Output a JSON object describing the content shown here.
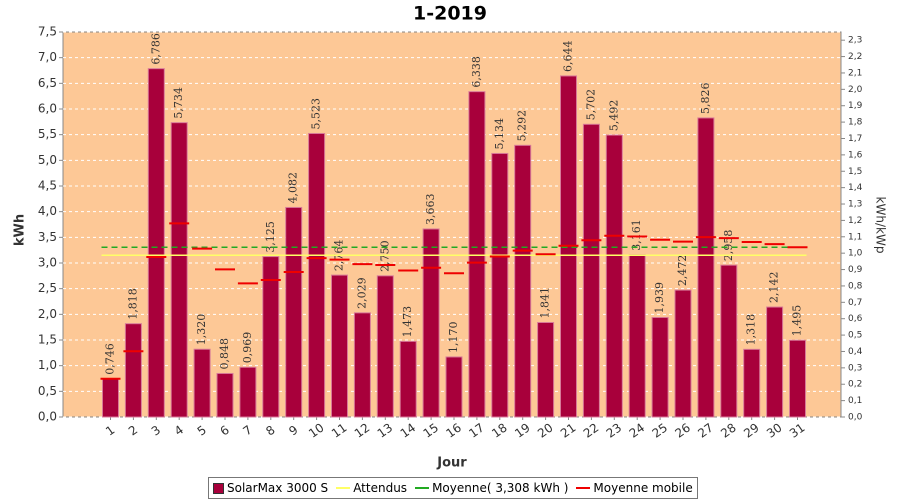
{
  "chart_data": {
    "type": "bar",
    "title": "1-2019",
    "y_label": "kWh",
    "y2_label": "kWh/kWp",
    "x_label": "Jour",
    "categories": [
      "1",
      "2",
      "3",
      "4",
      "5",
      "6",
      "7",
      "8",
      "9",
      "10",
      "11",
      "12",
      "13",
      "14",
      "15",
      "16",
      "17",
      "18",
      "19",
      "20",
      "21",
      "22",
      "23",
      "24",
      "25",
      "26",
      "27",
      "28",
      "29",
      "30",
      "31"
    ],
    "series": [
      {
        "name": "SolarMax 3000 S",
        "type": "bar",
        "color": "#a8003b",
        "values": [
          0.746,
          1.818,
          6.786,
          5.734,
          1.32,
          0.848,
          0.969,
          3.125,
          4.082,
          5.523,
          2.764,
          2.029,
          2.75,
          1.473,
          3.663,
          1.17,
          6.338,
          5.134,
          5.292,
          1.841,
          6.644,
          5.702,
          5.492,
          3.161,
          1.939,
          2.472,
          5.826,
          2.958,
          1.318,
          2.142,
          1.495
        ],
        "value_labels": [
          "0,746",
          "1,818",
          "6,786",
          "5,734",
          "1,320",
          "0,848",
          "0,969",
          "3,125",
          "4,082",
          "5,523",
          "2,764",
          "2,029",
          "2,750",
          "1,473",
          "3,663",
          "1,170",
          "6,338",
          "5,134",
          "5,292",
          "1,841",
          "6,644",
          "5,702",
          "5,492",
          "3,161",
          "1,939",
          "2,472",
          "5,826",
          "2,958",
          "1,318",
          "2,142",
          "1,495"
        ]
      },
      {
        "name": "Attendus",
        "type": "hline",
        "color": "#ffff66",
        "value": 3.15
      },
      {
        "name": "Moyenne( 3,308 kWh )",
        "type": "hline",
        "color": "#22aa22",
        "dashed": true,
        "value": 3.308
      },
      {
        "name": "Moyenne mobile",
        "type": "step",
        "color": "#ee0000",
        "values": [
          0.746,
          1.282,
          3.117,
          3.771,
          3.281,
          2.875,
          2.603,
          2.668,
          2.825,
          3.095,
          3.065,
          2.979,
          2.961,
          2.854,
          2.908,
          2.8,
          3.008,
          3.126,
          3.24,
          3.17,
          3.336,
          3.443,
          3.532,
          3.517,
          3.454,
          3.416,
          3.505,
          3.485,
          3.41,
          3.368,
          3.308
        ]
      }
    ],
    "ylim": [
      0,
      7.5
    ],
    "yticks": [
      {
        "value": 0,
        "label": "0,0"
      },
      {
        "value": 0.5,
        "label": "0,5"
      },
      {
        "value": 1,
        "label": "1,0"
      },
      {
        "value": 1.5,
        "label": "1,5"
      },
      {
        "value": 2,
        "label": "2,0"
      },
      {
        "value": 2.5,
        "label": "2,5"
      },
      {
        "value": 3,
        "label": "3,0"
      },
      {
        "value": 3.5,
        "label": "3,5"
      },
      {
        "value": 4,
        "label": "4,0"
      },
      {
        "value": 4.5,
        "label": "4,5"
      },
      {
        "value": 5,
        "label": "5,0"
      },
      {
        "value": 5.5,
        "label": "5,5"
      },
      {
        "value": 6,
        "label": "6,0"
      },
      {
        "value": 6.5,
        "label": "6,5"
      },
      {
        "value": 7,
        "label": "7,0"
      },
      {
        "value": 7.5,
        "label": "7,5"
      }
    ],
    "y2lim": [
      0,
      2.35
    ],
    "y2ticks": [
      {
        "value": 0,
        "label": "0,0"
      },
      {
        "value": 0.1,
        "label": "0,1"
      },
      {
        "value": 0.2,
        "label": "0,2"
      },
      {
        "value": 0.3,
        "label": "0,3"
      },
      {
        "value": 0.4,
        "label": "0,4"
      },
      {
        "value": 0.5,
        "label": "0,5"
      },
      {
        "value": 0.6,
        "label": "0,6"
      },
      {
        "value": 0.7,
        "label": "0,7"
      },
      {
        "value": 0.8,
        "label": "0,8"
      },
      {
        "value": 0.9,
        "label": "0,9"
      },
      {
        "value": 1,
        "label": "1,0"
      },
      {
        "value": 1.1,
        "label": "1,1"
      },
      {
        "value": 1.2,
        "label": "1,2"
      },
      {
        "value": 1.3,
        "label": "1,3"
      },
      {
        "value": 1.4,
        "label": "1,4"
      },
      {
        "value": 1.5,
        "label": "1,5"
      },
      {
        "value": 1.6,
        "label": "1,6"
      },
      {
        "value": 1.7,
        "label": "1,7"
      },
      {
        "value": 1.8,
        "label": "1,8"
      },
      {
        "value": 1.9,
        "label": "1,9"
      },
      {
        "value": 2,
        "label": "2,0"
      },
      {
        "value": 2.1,
        "label": "2,1"
      },
      {
        "value": 2.2,
        "label": "2,2"
      },
      {
        "value": 2.3,
        "label": "2,3"
      }
    ],
    "grid": true,
    "plot_background": "#fdc896"
  }
}
